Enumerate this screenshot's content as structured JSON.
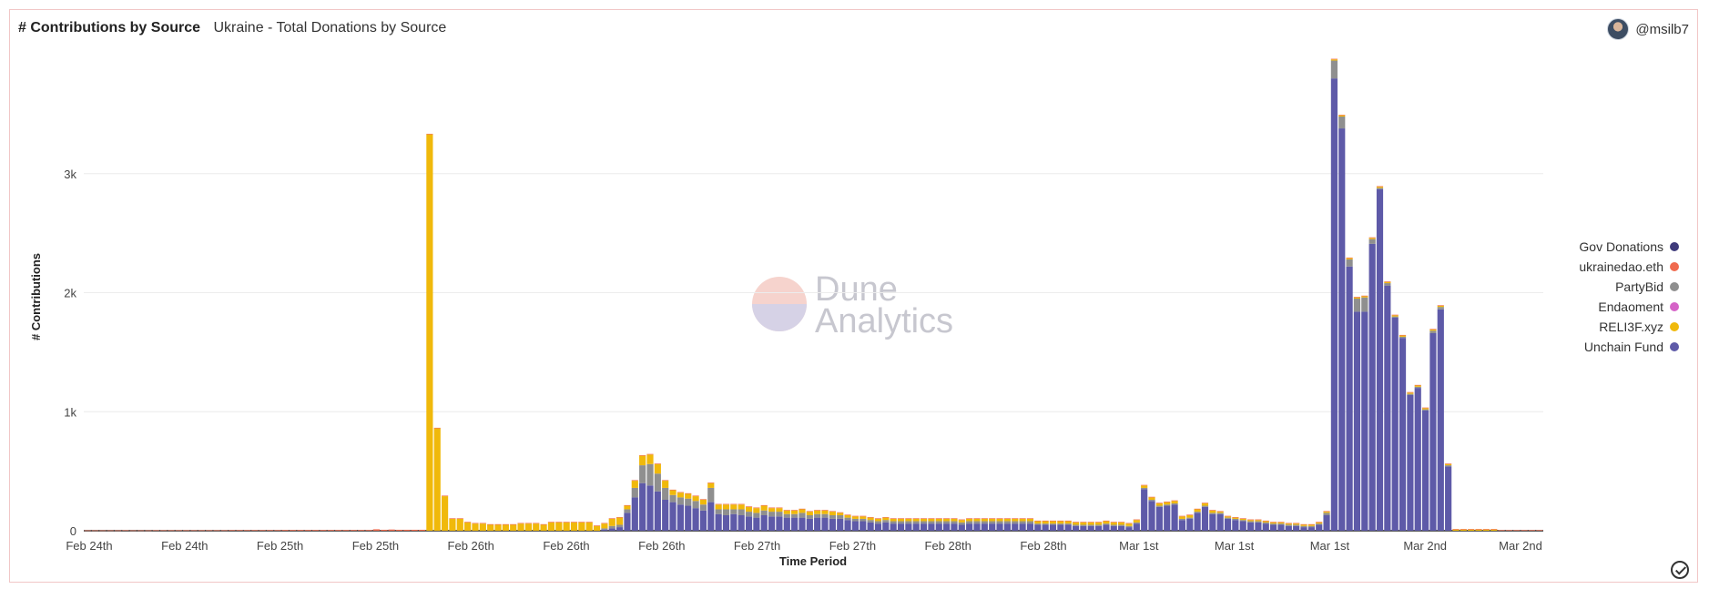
{
  "header": {
    "title": "# Contributions by Source",
    "subtitle": "Ukraine - Total Donations by Source",
    "username": "@msilb7"
  },
  "watermark": {
    "line1": "Dune",
    "line2": "Analytics"
  },
  "chart_data": {
    "type": "bar",
    "stacked": true,
    "xlabel": "Time Period",
    "ylabel": "# Contributions",
    "ylim": [
      0,
      4000
    ],
    "y_ticks": [
      {
        "v": 0,
        "label": "0"
      },
      {
        "v": 1000,
        "label": "1k"
      },
      {
        "v": 2000,
        "label": "2k"
      },
      {
        "v": 3000,
        "label": "3k"
      }
    ],
    "x_tick_labels": [
      "Feb 24th",
      "Feb 24th",
      "Feb 25th",
      "Feb 25th",
      "Feb 26th",
      "Feb 26th",
      "Feb 26th",
      "Feb 27th",
      "Feb 27th",
      "Feb 28th",
      "Feb 28th",
      "Mar 1st",
      "Mar 1st",
      "Mar 1st",
      "Mar 2nd",
      "Mar 2nd"
    ],
    "grid": true,
    "legend_position": "right",
    "series_colors": {
      "Unchain Fund": "#5e5aa8",
      "RELI3F.xyz": "#f0b90b",
      "Endaoment": "#d563c7",
      "PartyBid": "#8f8f8f",
      "ukrainedao.eth": "#f06a4e",
      "Gov Donations": "#3e3a7a"
    },
    "legend": [
      "Gov Donations",
      "ukrainedao.eth",
      "PartyBid",
      "Endaoment",
      "RELI3F.xyz",
      "Unchain Fund"
    ],
    "bar_count": 192,
    "series": [
      {
        "name": "Unchain Fund",
        "values": [
          0,
          0,
          0,
          0,
          0,
          0,
          0,
          0,
          0,
          0,
          0,
          0,
          0,
          0,
          0,
          0,
          0,
          0,
          0,
          0,
          0,
          0,
          0,
          0,
          0,
          0,
          0,
          0,
          0,
          0,
          0,
          0,
          0,
          0,
          0,
          0,
          0,
          0,
          0,
          0,
          0,
          0,
          0,
          0,
          0,
          0,
          0,
          0,
          0,
          0,
          0,
          0,
          0,
          0,
          0,
          0,
          0,
          0,
          0,
          0,
          0,
          0,
          0,
          0,
          0,
          0,
          0,
          0,
          10,
          20,
          30,
          150,
          280,
          400,
          380,
          330,
          260,
          240,
          220,
          210,
          190,
          170,
          240,
          140,
          130,
          140,
          130,
          120,
          110,
          130,
          120,
          120,
          110,
          110,
          110,
          100,
          110,
          110,
          100,
          100,
          90,
          80,
          80,
          70,
          60,
          70,
          60,
          60,
          60,
          60,
          60,
          60,
          60,
          60,
          60,
          50,
          60,
          60,
          60,
          60,
          60,
          60,
          60,
          60,
          60,
          50,
          50,
          50,
          50,
          50,
          40,
          40,
          40,
          40,
          50,
          40,
          40,
          30,
          60,
          350,
          250,
          200,
          210,
          220,
          90,
          100,
          150,
          200,
          140,
          140,
          100,
          90,
          80,
          70,
          70,
          60,
          50,
          50,
          40,
          40,
          30,
          30,
          50,
          130,
          3800,
          3380,
          2220,
          1840,
          1840,
          2410,
          2870,
          2060,
          1790,
          1620,
          1140,
          1200,
          1010,
          1660,
          1860,
          540
        ]
      },
      {
        "name": "PartyBid",
        "values": [
          0,
          0,
          0,
          0,
          0,
          0,
          0,
          0,
          0,
          0,
          0,
          0,
          0,
          0,
          0,
          0,
          0,
          0,
          0,
          0,
          0,
          0,
          0,
          0,
          0,
          0,
          0,
          0,
          0,
          0,
          0,
          0,
          0,
          0,
          0,
          0,
          0,
          0,
          0,
          0,
          0,
          0,
          0,
          0,
          0,
          0,
          0,
          0,
          0,
          0,
          0,
          0,
          0,
          0,
          0,
          0,
          0,
          0,
          0,
          0,
          0,
          0,
          0,
          0,
          0,
          0,
          0,
          0,
          10,
          20,
          20,
          30,
          80,
          150,
          180,
          150,
          100,
          60,
          60,
          60,
          60,
          50,
          120,
          40,
          50,
          40,
          50,
          40,
          40,
          40,
          40,
          40,
          30,
          30,
          40,
          30,
          30,
          30,
          30,
          30,
          20,
          20,
          20,
          20,
          20,
          20,
          20,
          20,
          20,
          20,
          20,
          20,
          20,
          20,
          20,
          20,
          20,
          20,
          20,
          20,
          20,
          20,
          20,
          20,
          20,
          10,
          10,
          10,
          10,
          10,
          10,
          10,
          10,
          10,
          10,
          10,
          10,
          10,
          10,
          10,
          10,
          10,
          10,
          10,
          10,
          10,
          10,
          10,
          10,
          10,
          10,
          10,
          10,
          10,
          10,
          10,
          10,
          10,
          10,
          10,
          10,
          10,
          10,
          20,
          150,
          100,
          60,
          110,
          120,
          40,
          10,
          20,
          10,
          10,
          10,
          10,
          10,
          20,
          20,
          10
        ]
      },
      {
        "name": "RELI3F.xyz",
        "values": [
          0,
          0,
          0,
          0,
          0,
          0,
          0,
          0,
          0,
          0,
          0,
          0,
          0,
          0,
          0,
          0,
          0,
          0,
          0,
          0,
          0,
          0,
          0,
          0,
          0,
          0,
          0,
          0,
          0,
          0,
          0,
          0,
          0,
          0,
          0,
          0,
          0,
          0,
          0,
          0,
          0,
          0,
          0,
          0,
          0,
          3330,
          860,
          290,
          100,
          100,
          70,
          60,
          60,
          50,
          50,
          50,
          50,
          60,
          60,
          60,
          50,
          70,
          70,
          70,
          70,
          70,
          70,
          40,
          40,
          60,
          60,
          30,
          60,
          80,
          80,
          80,
          60,
          40,
          40,
          40,
          40,
          40,
          40,
          40,
          40,
          40,
          40,
          40,
          40,
          40,
          30,
          30,
          30,
          30,
          30,
          30,
          30,
          30,
          30,
          20,
          20,
          20,
          20,
          20,
          20,
          20,
          20,
          20,
          20,
          20,
          20,
          20,
          20,
          20,
          20,
          20,
          20,
          20,
          20,
          20,
          20,
          20,
          20,
          20,
          20,
          20,
          20,
          20,
          20,
          20,
          20,
          20,
          20,
          20,
          20,
          20,
          20,
          20,
          20,
          20,
          20,
          20,
          20,
          20,
          20,
          20,
          20,
          20,
          20,
          10,
          10,
          10,
          10,
          10,
          10,
          10,
          10,
          10,
          10,
          10,
          10,
          10,
          10,
          10,
          10,
          10,
          10,
          10,
          10,
          10,
          10,
          10,
          10,
          10,
          10,
          10,
          10,
          10,
          10,
          10,
          10,
          10,
          10,
          10,
          10,
          10
        ]
      },
      {
        "name": "Endaoment",
        "values": [
          0,
          0,
          0,
          0,
          0,
          0,
          0,
          0,
          0,
          0,
          0,
          0,
          0,
          0,
          0,
          0,
          0,
          0,
          0,
          0,
          0,
          0,
          0,
          0,
          0,
          0,
          0,
          0,
          0,
          0,
          0,
          0,
          0,
          0,
          0,
          0,
          0,
          0,
          0,
          0,
          0,
          0,
          0,
          0,
          0,
          0,
          0,
          0,
          0,
          0,
          0,
          0,
          0,
          0,
          0,
          0,
          0,
          0,
          0,
          0,
          0,
          0,
          0,
          0,
          0,
          0,
          0,
          0,
          0,
          0,
          0,
          0,
          0,
          0,
          0,
          0,
          0,
          0,
          0,
          0,
          0,
          0,
          0,
          0,
          0,
          0,
          0,
          0,
          0,
          0,
          0,
          0,
          0,
          0,
          0,
          0,
          0,
          0,
          0,
          0,
          0,
          0,
          0,
          0,
          0,
          0,
          0,
          0,
          0,
          0,
          0,
          0,
          0,
          0,
          0,
          0,
          0,
          0,
          0,
          0,
          0,
          0,
          0,
          0,
          0,
          0,
          0,
          0,
          0,
          0,
          0,
          0,
          0,
          0,
          0,
          0,
          0,
          0,
          0,
          0,
          0,
          0,
          0,
          0,
          0,
          0,
          0,
          0,
          0,
          0,
          0,
          0,
          0,
          0,
          0,
          0,
          0,
          0,
          0,
          0,
          0,
          0,
          0,
          0,
          0,
          0,
          0,
          0,
          0,
          0,
          0,
          0,
          0,
          0,
          0,
          0,
          0,
          0,
          0,
          0,
          0,
          0,
          0,
          0,
          0,
          0,
          0,
          0,
          0,
          0,
          0,
          0
        ]
      },
      {
        "name": "ukrainedao.eth",
        "values": [
          3,
          3,
          3,
          3,
          3,
          4,
          3,
          3,
          3,
          4,
          4,
          4,
          4,
          4,
          4,
          4,
          4,
          4,
          4,
          5,
          5,
          5,
          5,
          5,
          5,
          5,
          6,
          6,
          6,
          6,
          6,
          6,
          6,
          6,
          6,
          6,
          6,
          6,
          12,
          8,
          10,
          8,
          8,
          8,
          8,
          5,
          5,
          5,
          5,
          5,
          5,
          5,
          5,
          5,
          5,
          5,
          5,
          5,
          5,
          5,
          5,
          5,
          5,
          5,
          5,
          5,
          5,
          5,
          5,
          5,
          5,
          5,
          5,
          5,
          5,
          5,
          5,
          5,
          5,
          5,
          5,
          5,
          5,
          5,
          5,
          5,
          5,
          5,
          5,
          5,
          5,
          5,
          5,
          5,
          5,
          5,
          5,
          5,
          5,
          5,
          5,
          5,
          5,
          5,
          5,
          5,
          5,
          5,
          5,
          5,
          5,
          5,
          5,
          5,
          5,
          5,
          5,
          5,
          5,
          5,
          5,
          5,
          5,
          5,
          5,
          5,
          5,
          5,
          5,
          5,
          5,
          5,
          5,
          5,
          5,
          5,
          5,
          5,
          5,
          5,
          5,
          5,
          5,
          5,
          5,
          5,
          5,
          5,
          5,
          5,
          5,
          5,
          5,
          5,
          5,
          5,
          5,
          5,
          5,
          5,
          5,
          5,
          5,
          5,
          5,
          5,
          5,
          5,
          5,
          5,
          5,
          5,
          5,
          5,
          5,
          5,
          5,
          5,
          5,
          5,
          5,
          5,
          5,
          5,
          5,
          5,
          5,
          5,
          5,
          5,
          5,
          5
        ]
      },
      {
        "name": "Gov Donations",
        "values": [
          0,
          0,
          0,
          0,
          0,
          0,
          0,
          0,
          0,
          0,
          0,
          0,
          0,
          0,
          0,
          0,
          0,
          0,
          0,
          0,
          0,
          0,
          0,
          0,
          0,
          0,
          0,
          0,
          0,
          0,
          0,
          0,
          0,
          0,
          0,
          0,
          0,
          0,
          0,
          0,
          0,
          0,
          0,
          0,
          0,
          0,
          0,
          0,
          0,
          0,
          0,
          0,
          0,
          0,
          0,
          0,
          0,
          0,
          0,
          0,
          0,
          0,
          0,
          0,
          0,
          0,
          0,
          0,
          0,
          0,
          0,
          0,
          0,
          0,
          0,
          0,
          0,
          0,
          0,
          0,
          0,
          0,
          0,
          0,
          0,
          0,
          0,
          0,
          0,
          0,
          0,
          0,
          0,
          0,
          0,
          0,
          0,
          0,
          0,
          0,
          0,
          0,
          0,
          0,
          0,
          0,
          0,
          0,
          0,
          0,
          0,
          0,
          0,
          0,
          0,
          0,
          0,
          0,
          0,
          0,
          0,
          0,
          0,
          0,
          0,
          0,
          0,
          0,
          0,
          0,
          0,
          0,
          0,
          0,
          0,
          0,
          0,
          0,
          0,
          0,
          0,
          0,
          0,
          0,
          0,
          0,
          0,
          0,
          0,
          0,
          0,
          0,
          0,
          0,
          0,
          0,
          0,
          0,
          0,
          0,
          0,
          0,
          0,
          0,
          0,
          0,
          0,
          0,
          0,
          0,
          0,
          0,
          0,
          0,
          0,
          0,
          0,
          0,
          0,
          0,
          0,
          0,
          0,
          0,
          0,
          0,
          0,
          0,
          0,
          0,
          0,
          0
        ]
      }
    ]
  }
}
